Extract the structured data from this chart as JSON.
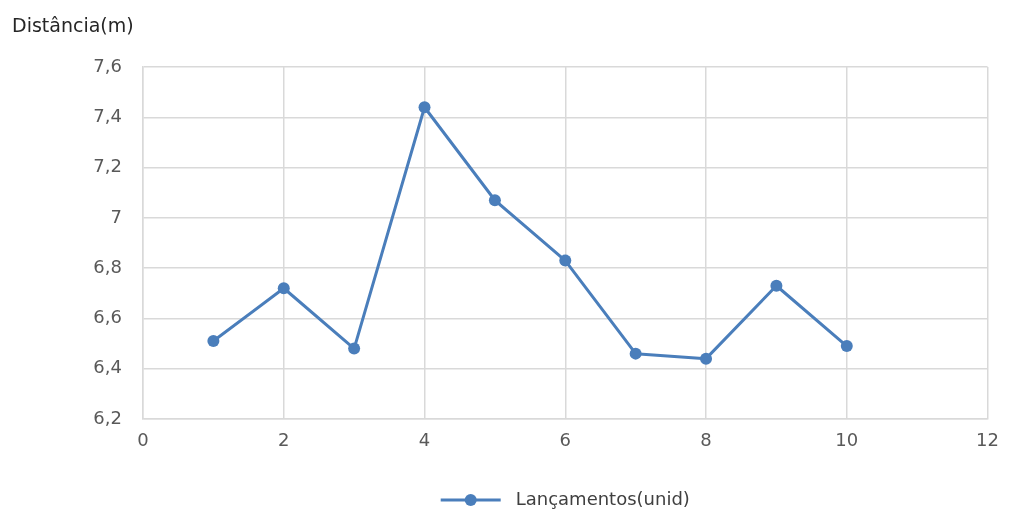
{
  "chart_data": {
    "type": "line",
    "ylabel": "Distância(m)",
    "x": [
      1,
      2,
      3,
      4,
      5,
      6,
      7,
      8,
      9,
      10
    ],
    "series": [
      {
        "name": "Lançamentos(unid)",
        "color": "#4a7ebb",
        "values": [
          6.51,
          6.72,
          6.48,
          7.44,
          7.07,
          6.83,
          6.46,
          6.44,
          6.73,
          6.49
        ]
      }
    ],
    "xlim": [
      0,
      12
    ],
    "xticks": [
      0,
      2,
      4,
      6,
      8,
      10,
      12
    ],
    "ylim": [
      6.2,
      7.6
    ],
    "yticks": [
      {
        "value": 6.2,
        "label": "6,2"
      },
      {
        "value": 6.4,
        "label": "6,4"
      },
      {
        "value": 6.6,
        "label": "6,6"
      },
      {
        "value": 6.8,
        "label": "6,8"
      },
      7,
      {
        "value": 7.2,
        "label": "7,2"
      },
      {
        "value": 7.4,
        "label": "7,4"
      },
      {
        "value": 7.6,
        "label": "7,6"
      }
    ],
    "grid": true,
    "legend": "bottom",
    "marker": "circle",
    "line_style": "solid"
  }
}
